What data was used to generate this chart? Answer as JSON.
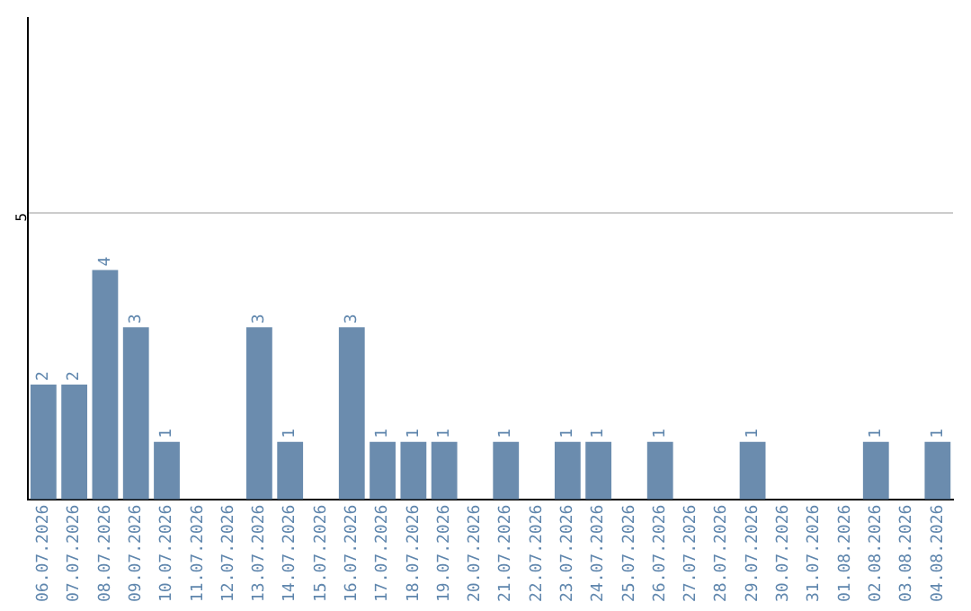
{
  "chart_data": {
    "type": "bar",
    "categories": [
      "06.07.2026",
      "07.07.2026",
      "08.07.2026",
      "09.07.2026",
      "10.07.2026",
      "11.07.2026",
      "12.07.2026",
      "13.07.2026",
      "14.07.2026",
      "15.07.2026",
      "16.07.2026",
      "17.07.2026",
      "18.07.2026",
      "19.07.2026",
      "20.07.2026",
      "21.07.2026",
      "22.07.2026",
      "23.07.2026",
      "24.07.2026",
      "25.07.2026",
      "26.07.2026",
      "27.07.2026",
      "28.07.2026",
      "29.07.2026",
      "30.07.2026",
      "31.07.2026",
      "01.08.2026",
      "02.08.2026",
      "03.08.2026",
      "04.08.2026"
    ],
    "values": [
      2,
      2,
      4,
      3,
      1,
      0,
      0,
      3,
      1,
      0,
      3,
      1,
      1,
      1,
      0,
      1,
      0,
      1,
      1,
      0,
      1,
      0,
      0,
      1,
      0,
      0,
      0,
      1,
      0,
      1
    ],
    "value_labels": [
      "2",
      "2",
      "4",
      "3",
      "1",
      null,
      null,
      "3",
      "1",
      null,
      "3",
      "1",
      "1",
      "1",
      null,
      "1",
      null,
      "1",
      "1",
      null,
      "1",
      null,
      null,
      "1",
      null,
      null,
      null,
      "1",
      null,
      "1"
    ],
    "color": "#6b8cae",
    "ylim": [
      0,
      8.4
    ],
    "yticks": [
      5
    ],
    "grid": "y",
    "legend": false
  }
}
